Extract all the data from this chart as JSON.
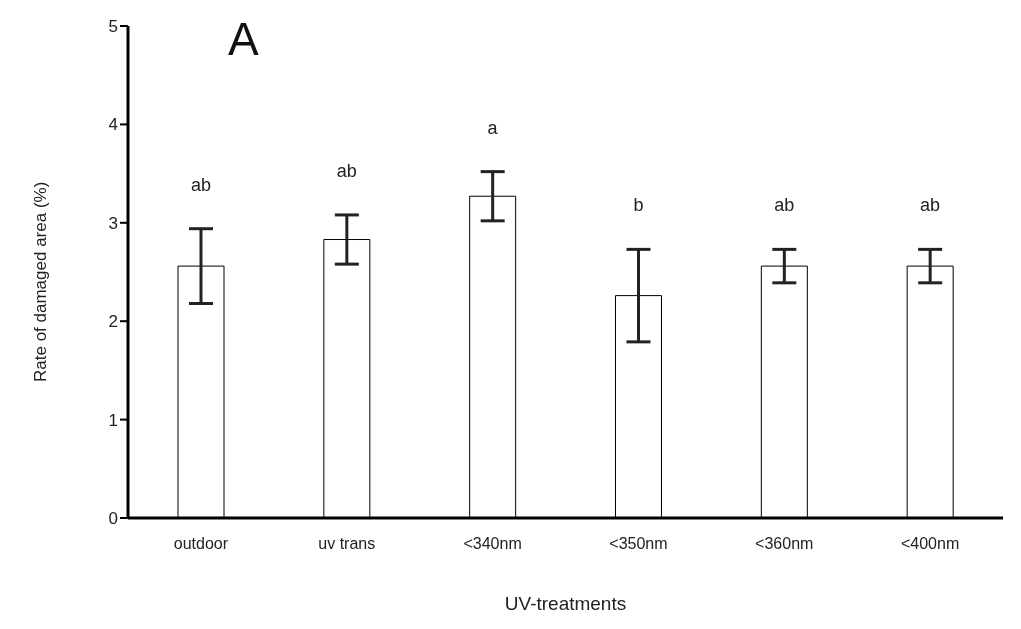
{
  "chart_data": {
    "type": "bar",
    "xlabel": "UV-treatments",
    "ylabel": "Rate of damaged area (%)",
    "categories": [
      "outdoor",
      "uv trans",
      "<340nm",
      "<350nm",
      "<360nm",
      "<400nm"
    ],
    "values": [
      2.56,
      2.83,
      3.27,
      2.26,
      2.56,
      2.56
    ],
    "errors": [
      0.38,
      0.25,
      0.25,
      0.47,
      0.17,
      0.17
    ],
    "color": "#ffffff",
    "ylim": [
      0,
      5
    ],
    "yticks": [
      0,
      1,
      2,
      3,
      4,
      5
    ],
    "grid": false,
    "legend": false,
    "annotations": [
      "A",
      "ab",
      "ab",
      "a",
      "b",
      "ab",
      "ab"
    ]
  }
}
